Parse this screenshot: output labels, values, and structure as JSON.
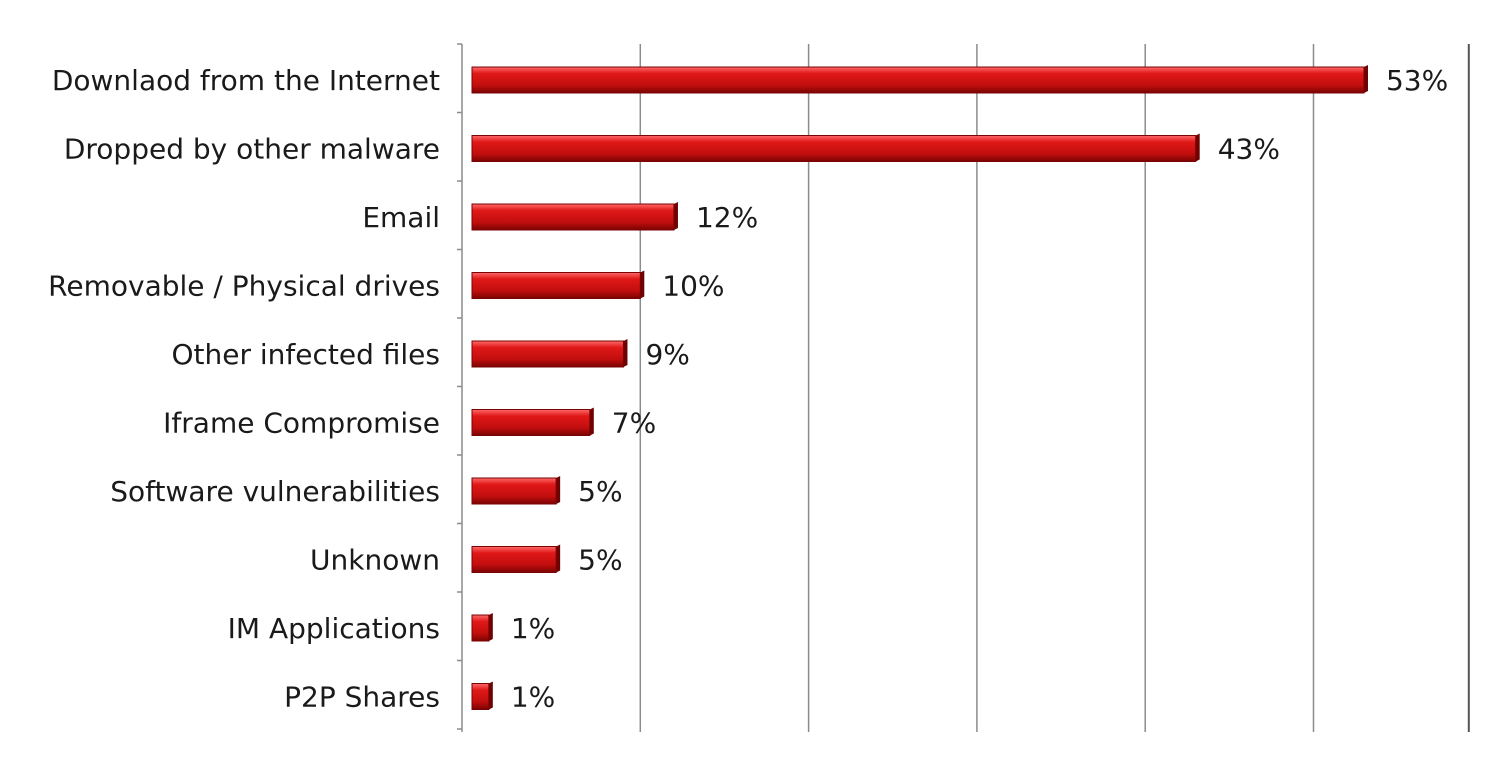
{
  "chart_data": {
    "type": "bar",
    "orientation": "horizontal",
    "categories": [
      "Downlaod from the Internet",
      "Dropped by other malware",
      "Email",
      "Removable / Physical drives",
      "Other infected files",
      "Iframe Compromise",
      "Software vulnerabilities",
      "Unknown",
      "IM Applications",
      "P2P Shares"
    ],
    "values": [
      53,
      43,
      12,
      10,
      9,
      7,
      5,
      5,
      1,
      1
    ],
    "value_labels": [
      "53%",
      "43%",
      "12%",
      "10%",
      "9%",
      "7%",
      "5%",
      "5%",
      "1%",
      "1%"
    ],
    "xlim": [
      0,
      60
    ],
    "x_grid_step": 10,
    "grid": true,
    "bar_color": "#cc1111",
    "title": "",
    "xlabel": "",
    "ylabel": ""
  }
}
